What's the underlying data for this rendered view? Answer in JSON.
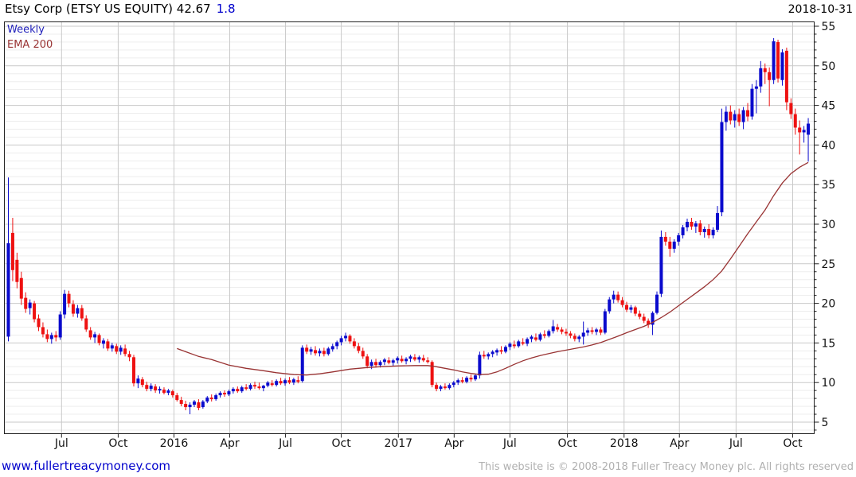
{
  "header": {
    "title_main": "Etsy Corp (ETSY US EQUITY) 42.67",
    "title_change": "1.8",
    "date": "2018-10-31"
  },
  "legend": {
    "timeframe": "Weekly",
    "overlay": "EMA 200"
  },
  "footer": {
    "website": "www.fullertreacymoney.com",
    "copyright": "This website is © 2008-2018 Fuller Treacy Money plc. All rights reserved"
  },
  "chart_data": {
    "type": "candlestick",
    "name": "Etsy Corp",
    "symbol": "ETSY US EQUITY",
    "last_close": 42.67,
    "change": 1.8,
    "interval": "Weekly",
    "overlay": "EMA 200",
    "as_of": "2018-10-31",
    "ylim": [
      3.5,
      55.6
    ],
    "y_ticks": [
      5,
      10,
      15,
      20,
      25,
      30,
      35,
      40,
      45,
      50,
      55
    ],
    "y_minor_step": 1,
    "x_ticks": [
      {
        "label": "Jul",
        "week": 12.3
      },
      {
        "label": "Oct",
        "week": 25.4
      },
      {
        "label": "2016",
        "week": 38.3
      },
      {
        "label": "Apr",
        "week": 51.2
      },
      {
        "label": "Jul",
        "week": 64.1
      },
      {
        "label": "Oct",
        "week": 77.0
      },
      {
        "label": "2017",
        "week": 90.2
      },
      {
        "label": "Apr",
        "week": 103.1
      },
      {
        "label": "Jul",
        "week": 116.0
      },
      {
        "label": "Oct",
        "week": 129.3
      },
      {
        "label": "2018",
        "week": 142.4
      },
      {
        "label": "Apr",
        "week": 155.2
      },
      {
        "label": "Jul",
        "week": 168.3
      },
      {
        "label": "Oct",
        "week": 181.4
      }
    ],
    "colors": {
      "up": "#0a0acd",
      "down": "#ee1111",
      "ema": "#993333",
      "grid_minor": "#ededed",
      "grid_major": "#c9c9c9",
      "frame": "#222222",
      "label": "#111111"
    },
    "candles": [
      [
        15.8,
        35.9,
        15.2,
        27.6
      ],
      [
        28.9,
        30.8,
        22.8,
        24.2
      ],
      [
        25.5,
        26.4,
        21.9,
        22.7
      ],
      [
        23.2,
        24.0,
        19.8,
        20.6
      ],
      [
        20.7,
        21.4,
        18.8,
        19.3
      ],
      [
        19.4,
        20.5,
        18.6,
        20.1
      ],
      [
        20.0,
        20.3,
        17.6,
        18.0
      ],
      [
        18.1,
        18.6,
        16.5,
        17.0
      ],
      [
        17.0,
        17.6,
        15.7,
        16.1
      ],
      [
        16.1,
        16.7,
        15.1,
        15.5
      ],
      [
        15.5,
        16.3,
        14.9,
        16.0
      ],
      [
        16.0,
        16.5,
        15.2,
        15.7
      ],
      [
        15.7,
        19.0,
        15.4,
        18.6
      ],
      [
        18.6,
        21.7,
        18.1,
        21.2
      ],
      [
        21.2,
        21.6,
        19.5,
        20.0
      ],
      [
        19.9,
        20.4,
        18.3,
        18.7
      ],
      [
        18.7,
        19.8,
        18.2,
        19.4
      ],
      [
        19.4,
        19.8,
        17.8,
        18.1
      ],
      [
        18.1,
        18.5,
        16.4,
        16.7
      ],
      [
        16.6,
        17.0,
        15.4,
        15.7
      ],
      [
        15.7,
        16.4,
        15.0,
        16.1
      ],
      [
        16.0,
        16.2,
        14.7,
        15.0
      ],
      [
        14.9,
        15.6,
        14.3,
        15.3
      ],
      [
        15.2,
        15.5,
        14.0,
        14.3
      ],
      [
        14.3,
        15.0,
        13.9,
        14.7
      ],
      [
        14.6,
        14.9,
        13.6,
        13.9
      ],
      [
        13.9,
        14.7,
        13.5,
        14.4
      ],
      [
        14.3,
        14.8,
        13.3,
        13.6
      ],
      [
        13.6,
        14.0,
        12.7,
        13.2
      ],
      [
        13.2,
        13.5,
        9.5,
        9.9
      ],
      [
        9.9,
        10.9,
        9.3,
        10.5
      ],
      [
        10.4,
        10.7,
        9.4,
        9.7
      ],
      [
        9.7,
        10.1,
        8.9,
        9.2
      ],
      [
        9.2,
        9.9,
        8.9,
        9.6
      ],
      [
        9.5,
        9.8,
        8.7,
        9.0
      ],
      [
        9.0,
        9.5,
        8.6,
        9.2
      ],
      [
        9.1,
        9.4,
        8.5,
        8.7
      ],
      [
        8.7,
        9.2,
        8.4,
        9.0
      ],
      [
        8.9,
        9.1,
        8.1,
        8.4
      ],
      [
        8.4,
        8.7,
        7.6,
        7.8
      ],
      [
        7.8,
        8.2,
        7.0,
        7.3
      ],
      [
        7.3,
        7.7,
        6.5,
        6.9
      ],
      [
        6.9,
        7.5,
        6.0,
        7.2
      ],
      [
        7.2,
        7.8,
        6.9,
        7.6
      ],
      [
        7.5,
        7.9,
        6.5,
        6.8
      ],
      [
        6.9,
        7.8,
        6.7,
        7.6
      ],
      [
        7.6,
        8.3,
        7.4,
        8.1
      ],
      [
        8.1,
        8.5,
        7.6,
        7.9
      ],
      [
        7.9,
        8.6,
        7.7,
        8.4
      ],
      [
        8.4,
        8.9,
        8.1,
        8.7
      ],
      [
        8.7,
        9.0,
        8.2,
        8.5
      ],
      [
        8.5,
        9.1,
        8.3,
        8.9
      ],
      [
        8.9,
        9.4,
        8.6,
        9.2
      ],
      [
        9.2,
        9.5,
        8.7,
        8.9
      ],
      [
        8.9,
        9.6,
        8.7,
        9.4
      ],
      [
        9.4,
        9.8,
        9.0,
        9.2
      ],
      [
        9.2,
        9.9,
        9.0,
        9.7
      ],
      [
        9.7,
        10.1,
        9.2,
        9.5
      ],
      [
        9.5,
        10.0,
        9.1,
        9.3
      ],
      [
        9.3,
        9.7,
        8.9,
        9.6
      ],
      [
        9.6,
        10.2,
        9.4,
        10.0
      ],
      [
        9.9,
        10.3,
        9.5,
        9.7
      ],
      [
        9.7,
        10.4,
        9.5,
        10.2
      ],
      [
        10.2,
        10.6,
        9.7,
        9.9
      ],
      [
        9.9,
        10.5,
        9.6,
        10.3
      ],
      [
        10.3,
        10.7,
        9.8,
        10.0
      ],
      [
        10.0,
        10.6,
        9.7,
        10.4
      ],
      [
        10.3,
        10.8,
        9.9,
        10.1
      ],
      [
        10.2,
        14.7,
        10.0,
        14.4
      ],
      [
        14.4,
        14.8,
        13.6,
        13.9
      ],
      [
        13.9,
        14.5,
        13.5,
        14.2
      ],
      [
        14.1,
        14.6,
        13.4,
        13.7
      ],
      [
        13.7,
        14.3,
        13.3,
        14.0
      ],
      [
        14.0,
        14.4,
        13.3,
        13.6
      ],
      [
        13.6,
        14.5,
        13.4,
        14.3
      ],
      [
        14.2,
        14.9,
        13.9,
        14.6
      ],
      [
        14.6,
        15.3,
        14.2,
        15.1
      ],
      [
        15.1,
        15.9,
        14.7,
        15.6
      ],
      [
        15.6,
        16.3,
        15.2,
        15.9
      ],
      [
        15.9,
        16.1,
        14.9,
        15.2
      ],
      [
        15.2,
        15.6,
        14.3,
        14.6
      ],
      [
        14.6,
        15.0,
        13.7,
        14.0
      ],
      [
        14.0,
        14.4,
        13.0,
        13.3
      ],
      [
        13.3,
        13.6,
        11.8,
        12.1
      ],
      [
        12.1,
        12.9,
        11.7,
        12.6
      ],
      [
        12.6,
        13.0,
        11.9,
        12.2
      ],
      [
        12.2,
        12.8,
        11.9,
        12.6
      ],
      [
        12.6,
        13.1,
        12.2,
        12.9
      ],
      [
        12.8,
        13.2,
        12.3,
        12.5
      ],
      [
        12.5,
        13.0,
        12.1,
        12.8
      ],
      [
        12.8,
        13.3,
        12.4,
        13.1
      ],
      [
        13.0,
        13.4,
        12.5,
        12.7
      ],
      [
        12.7,
        13.2,
        12.3,
        13.0
      ],
      [
        13.0,
        13.5,
        12.6,
        13.3
      ],
      [
        13.2,
        13.6,
        12.7,
        12.9
      ],
      [
        12.9,
        13.4,
        12.5,
        13.2
      ],
      [
        13.1,
        13.5,
        12.6,
        12.8
      ],
      [
        12.8,
        13.2,
        12.4,
        12.6
      ],
      [
        12.6,
        12.8,
        9.4,
        9.7
      ],
      [
        9.7,
        10.0,
        8.9,
        9.2
      ],
      [
        9.2,
        9.7,
        8.9,
        9.5
      ],
      [
        9.5,
        9.9,
        9.1,
        9.3
      ],
      [
        9.3,
        9.9,
        9.1,
        9.7
      ],
      [
        9.7,
        10.2,
        9.4,
        10.0
      ],
      [
        10.0,
        10.5,
        9.7,
        10.3
      ],
      [
        10.3,
        10.7,
        9.9,
        10.1
      ],
      [
        10.1,
        10.8,
        9.9,
        10.6
      ],
      [
        10.6,
        11.0,
        10.1,
        10.4
      ],
      [
        10.4,
        11.1,
        10.2,
        10.9
      ],
      [
        10.9,
        13.9,
        10.5,
        13.5
      ],
      [
        13.5,
        14.0,
        13.0,
        13.3
      ],
      [
        13.3,
        13.8,
        12.9,
        13.6
      ],
      [
        13.6,
        14.1,
        13.2,
        13.9
      ],
      [
        13.8,
        14.3,
        13.4,
        14.1
      ],
      [
        14.1,
        14.6,
        13.6,
        13.9
      ],
      [
        13.9,
        14.7,
        13.7,
        14.5
      ],
      [
        14.5,
        15.1,
        14.1,
        14.9
      ],
      [
        14.8,
        15.3,
        14.3,
        14.6
      ],
      [
        14.6,
        15.4,
        14.4,
        15.2
      ],
      [
        15.1,
        15.6,
        14.7,
        14.9
      ],
      [
        14.9,
        15.7,
        14.6,
        15.5
      ],
      [
        15.5,
        16.0,
        15.1,
        15.8
      ],
      [
        15.7,
        16.2,
        15.2,
        15.4
      ],
      [
        15.4,
        16.3,
        15.2,
        16.1
      ],
      [
        16.1,
        16.6,
        15.6,
        15.9
      ],
      [
        15.9,
        16.7,
        15.7,
        16.5
      ],
      [
        16.5,
        17.9,
        16.2,
        17.1
      ],
      [
        17.0,
        17.4,
        16.4,
        16.7
      ],
      [
        16.7,
        17.0,
        16.1,
        16.4
      ],
      [
        16.4,
        16.8,
        15.9,
        16.2
      ],
      [
        16.2,
        16.5,
        15.6,
        15.9
      ],
      [
        15.9,
        16.2,
        15.2,
        15.5
      ],
      [
        15.5,
        16.0,
        15.1,
        15.8
      ],
      [
        15.8,
        17.7,
        14.8,
        16.3
      ],
      [
        16.3,
        16.9,
        15.9,
        16.6
      ],
      [
        16.6,
        17.0,
        16.1,
        16.4
      ],
      [
        16.4,
        16.9,
        16.0,
        16.7
      ],
      [
        16.7,
        17.0,
        16.0,
        16.3
      ],
      [
        16.3,
        19.3,
        16.1,
        19.0
      ],
      [
        19.0,
        20.8,
        18.7,
        20.5
      ],
      [
        20.5,
        21.6,
        20.0,
        21.1
      ],
      [
        21.1,
        21.5,
        20.1,
        20.4
      ],
      [
        20.4,
        20.8,
        19.5,
        19.8
      ],
      [
        19.8,
        20.2,
        18.9,
        19.2
      ],
      [
        19.2,
        19.8,
        18.8,
        19.5
      ],
      [
        19.5,
        19.7,
        18.4,
        18.7
      ],
      [
        18.7,
        19.1,
        18.0,
        18.3
      ],
      [
        18.3,
        18.7,
        17.5,
        17.8
      ],
      [
        17.8,
        18.1,
        16.9,
        17.3
      ],
      [
        17.3,
        19.0,
        16.0,
        18.8
      ],
      [
        18.8,
        21.5,
        18.6,
        21.1
      ],
      [
        21.2,
        29.2,
        20.8,
        28.4
      ],
      [
        28.4,
        29.0,
        27.3,
        27.8
      ],
      [
        27.8,
        28.4,
        25.9,
        26.9
      ],
      [
        26.9,
        28.1,
        26.4,
        27.8
      ],
      [
        27.8,
        28.9,
        27.3,
        28.6
      ],
      [
        28.6,
        29.9,
        28.2,
        29.6
      ],
      [
        29.6,
        30.7,
        29.1,
        30.3
      ],
      [
        30.3,
        30.8,
        29.3,
        29.7
      ],
      [
        29.7,
        30.4,
        28.9,
        30.1
      ],
      [
        30.1,
        30.5,
        28.6,
        29.0
      ],
      [
        29.0,
        29.7,
        28.3,
        29.4
      ],
      [
        29.4,
        30.0,
        28.2,
        28.6
      ],
      [
        28.6,
        29.6,
        28.2,
        29.3
      ],
      [
        29.3,
        32.3,
        29.0,
        31.4
      ],
      [
        31.5,
        44.6,
        31.0,
        42.9
      ],
      [
        42.9,
        44.9,
        41.8,
        44.2
      ],
      [
        44.2,
        45.0,
        42.6,
        43.1
      ],
      [
        43.1,
        44.4,
        42.2,
        43.9
      ],
      [
        43.9,
        44.6,
        42.4,
        42.9
      ],
      [
        42.9,
        44.8,
        42.0,
        44.4
      ],
      [
        44.4,
        45.3,
        43.0,
        43.6
      ],
      [
        43.6,
        47.7,
        43.2,
        47.1
      ],
      [
        47.1,
        48.2,
        44.0,
        47.4
      ],
      [
        47.4,
        50.6,
        46.6,
        49.7
      ],
      [
        49.7,
        50.3,
        47.7,
        49.2
      ],
      [
        49.2,
        49.8,
        44.9,
        48.2
      ],
      [
        48.2,
        53.5,
        47.7,
        53.1
      ],
      [
        53.0,
        53.3,
        47.9,
        48.4
      ],
      [
        48.2,
        52.1,
        47.5,
        51.7
      ],
      [
        51.9,
        52.3,
        44.4,
        45.4
      ],
      [
        45.3,
        45.9,
        43.3,
        43.9
      ],
      [
        43.9,
        44.6,
        41.3,
        42.2
      ],
      [
        42.2,
        43.1,
        38.8,
        41.6
      ],
      [
        41.6,
        42.4,
        40.3,
        41.9
      ],
      [
        41.3,
        43.4,
        37.9,
        42.7
      ]
    ],
    "ema_points": [
      [
        39,
        14.3
      ],
      [
        41,
        13.9
      ],
      [
        44,
        13.3
      ],
      [
        47,
        12.9
      ],
      [
        51,
        12.2
      ],
      [
        55,
        11.8
      ],
      [
        59,
        11.5
      ],
      [
        62,
        11.25
      ],
      [
        66,
        11.0
      ],
      [
        69,
        10.95
      ],
      [
        72,
        11.1
      ],
      [
        75,
        11.35
      ],
      [
        79,
        11.7
      ],
      [
        83,
        11.9
      ],
      [
        86,
        12.0
      ],
      [
        90,
        12.1
      ],
      [
        94,
        12.15
      ],
      [
        97,
        12.15
      ],
      [
        99,
        12.0
      ],
      [
        101,
        11.8
      ],
      [
        103,
        11.6
      ],
      [
        105,
        11.35
      ],
      [
        107,
        11.15
      ],
      [
        109,
        11.0
      ],
      [
        111,
        11.05
      ],
      [
        113,
        11.35
      ],
      [
        115,
        11.8
      ],
      [
        117,
        12.3
      ],
      [
        119,
        12.75
      ],
      [
        121,
        13.1
      ],
      [
        123,
        13.4
      ],
      [
        125,
        13.65
      ],
      [
        127,
        13.9
      ],
      [
        129,
        14.1
      ],
      [
        131,
        14.3
      ],
      [
        133,
        14.5
      ],
      [
        135,
        14.75
      ],
      [
        137,
        15.05
      ],
      [
        139,
        15.45
      ],
      [
        141,
        15.85
      ],
      [
        143,
        16.3
      ],
      [
        145,
        16.7
      ],
      [
        147,
        17.1
      ],
      [
        149,
        17.6
      ],
      [
        151,
        18.2
      ],
      [
        153,
        18.9
      ],
      [
        155,
        19.7
      ],
      [
        157,
        20.5
      ],
      [
        159,
        21.3
      ],
      [
        161,
        22.1
      ],
      [
        163,
        23.0
      ],
      [
        165,
        24.1
      ],
      [
        167,
        25.6
      ],
      [
        169,
        27.2
      ],
      [
        171,
        28.8
      ],
      [
        173,
        30.3
      ],
      [
        175,
        31.8
      ],
      [
        177,
        33.6
      ],
      [
        179,
        35.2
      ],
      [
        181,
        36.4
      ],
      [
        183,
        37.2
      ],
      [
        185,
        37.8
      ]
    ]
  }
}
